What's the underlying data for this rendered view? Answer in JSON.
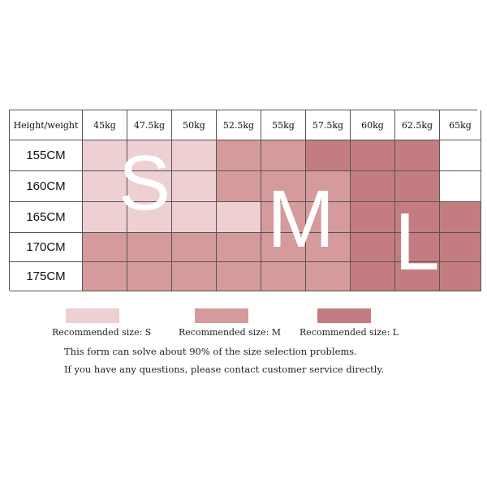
{
  "colors": {
    "S": "#eecfd2",
    "M": "#d49a9c",
    "L": "#c37d80",
    "empty": "#ffffff"
  },
  "table": {
    "corner_label": "Height/weight",
    "weights": [
      "45kg",
      "47.5kg",
      "50kg",
      "52.5kg",
      "55kg",
      "57.5kg",
      "60kg",
      "62.5kg",
      "65kg"
    ],
    "rows": [
      {
        "height": "155CM",
        "sizes": [
          "S",
          "S",
          "S",
          "M",
          "M",
          "L",
          "L",
          "L",
          ""
        ]
      },
      {
        "height": "160CM",
        "sizes": [
          "S",
          "S",
          "S",
          "M",
          "M",
          "M",
          "L",
          "L",
          ""
        ]
      },
      {
        "height": "165CM",
        "sizes": [
          "S",
          "S",
          "S",
          "S",
          "M",
          "M",
          "L",
          "L",
          "L"
        ]
      },
      {
        "height": "170CM",
        "sizes": [
          "M",
          "M",
          "M",
          "M",
          "M",
          "M",
          "L",
          "L",
          "L"
        ]
      },
      {
        "height": "175CM",
        "sizes": [
          "M",
          "M",
          "M",
          "M",
          "M",
          "M",
          "L",
          "L",
          "L"
        ]
      }
    ]
  },
  "overlay_letters": {
    "s": "S",
    "m": "M",
    "l": "L"
  },
  "legend": {
    "s_label": "Recommended size: S",
    "m_label": "Recommended size: M",
    "l_label": "Recommended size: L"
  },
  "notes": {
    "line1": "This form can solve about 90% of the size selection problems.",
    "line2": "If you have any questions, please contact customer service directly."
  }
}
